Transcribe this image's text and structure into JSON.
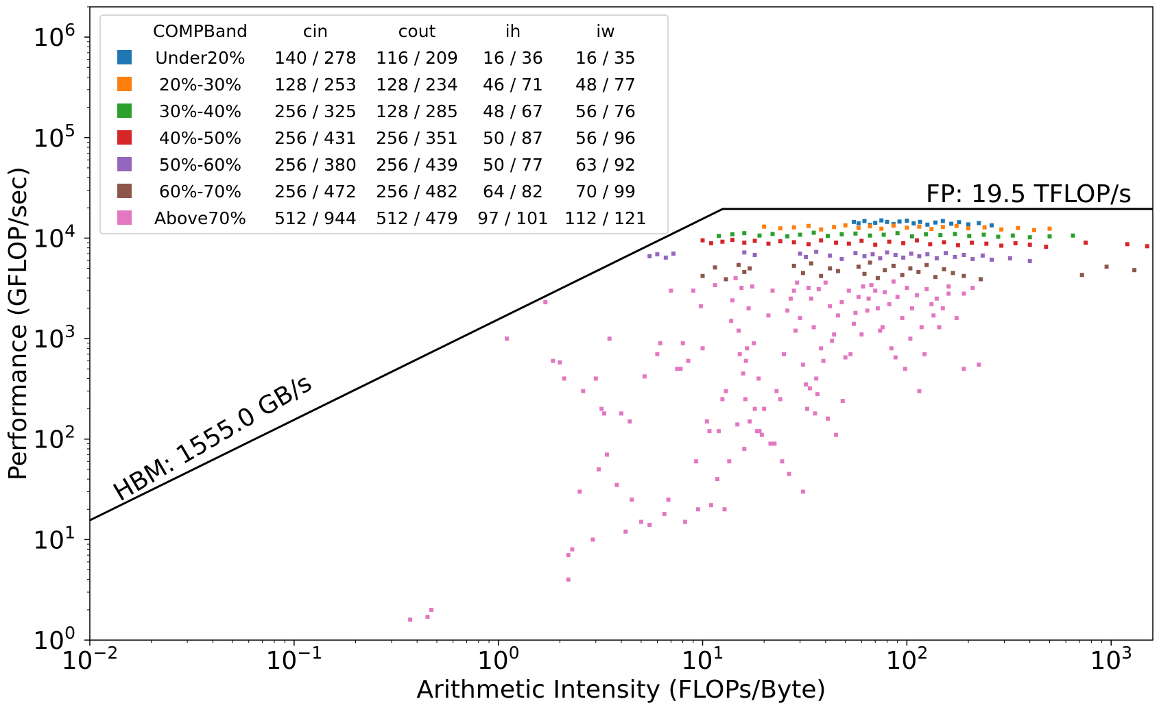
{
  "chart_data": {
    "type": "scatter",
    "title": "",
    "xlabel": "Arithmetic Intensity (FLOPs/Byte)",
    "ylabel": "Performance (GFLOP/sec)",
    "xscale": "log",
    "yscale": "log",
    "xlim": [
      0.01,
      1600
    ],
    "ylim": [
      1,
      2000000
    ],
    "grid": false,
    "x_ticks": [
      {
        "value": 0.01,
        "base": "10",
        "exp": "−2"
      },
      {
        "value": 0.1,
        "base": "10",
        "exp": "−1"
      },
      {
        "value": 1,
        "base": "10",
        "exp": "0"
      },
      {
        "value": 10,
        "base": "10",
        "exp": "1"
      },
      {
        "value": 100,
        "base": "10",
        "exp": "2"
      },
      {
        "value": 1000,
        "base": "10",
        "exp": "3"
      }
    ],
    "y_ticks": [
      {
        "value": 1,
        "base": "10",
        "exp": "0"
      },
      {
        "value": 10,
        "base": "10",
        "exp": "1"
      },
      {
        "value": 100,
        "base": "10",
        "exp": "2"
      },
      {
        "value": 1000,
        "base": "10",
        "exp": "3"
      },
      {
        "value": 10000,
        "base": "10",
        "exp": "4"
      },
      {
        "value": 100000,
        "base": "10",
        "exp": "5"
      },
      {
        "value": 1000000,
        "base": "10",
        "exp": "6"
      }
    ],
    "roofline": {
      "bandwidth_label": "HBM: 1555.0 GB/s",
      "compute_label": "FP: 19.5 TFLOP/s",
      "points": [
        [
          0.01,
          15.55
        ],
        [
          12.54,
          19500
        ],
        [
          1600,
          19500
        ]
      ]
    },
    "legend": {
      "location": "upper-left",
      "headers": [
        "COMPBand",
        "cin",
        "cout",
        "ih",
        "iw"
      ],
      "rows": [
        {
          "band": "Under20%",
          "color": "#1f77b4",
          "cin": "140 / 278",
          "cout": "116 / 209",
          "ih": "16 / 36",
          "iw": "16 / 35"
        },
        {
          "band": "20%-30%",
          "color": "#ff7f0e",
          "cin": "128 / 253",
          "cout": "128 / 234",
          "ih": "46 / 71",
          "iw": "48 / 77"
        },
        {
          "band": "30%-40%",
          "color": "#2ca02c",
          "cin": "256 / 325",
          "cout": "128 / 285",
          "ih": "48 / 67",
          "iw": "56 / 76"
        },
        {
          "band": "40%-50%",
          "color": "#d62728",
          "cin": "256 / 431",
          "cout": "256 / 351",
          "ih": "50 / 87",
          "iw": "56 / 96"
        },
        {
          "band": "50%-60%",
          "color": "#9467bd",
          "cin": "256 / 380",
          "cout": "256 / 439",
          "ih": "50 / 77",
          "iw": "63 / 92"
        },
        {
          "band": "60%-70%",
          "color": "#8c564b",
          "cin": "256 / 472",
          "cout": "256 / 482",
          "ih": "64 / 82",
          "iw": "70 / 99"
        },
        {
          "band": "Above70%",
          "color": "#e377c2",
          "cin": "512 / 944",
          "cout": "512 / 479",
          "ih": "97 / 101",
          "iw": "112 / 121"
        }
      ]
    },
    "series": [
      {
        "band_index": 0,
        "color": "#1f77b4",
        "x_range": [
          55,
          280
        ],
        "y_range": [
          13000,
          15000
        ],
        "x": [
          55,
          58,
          62,
          66,
          70,
          75,
          80,
          86,
          92,
          100,
          108,
          116,
          126,
          138,
          150,
          165,
          180,
          200,
          225,
          260
        ],
        "y": [
          14500,
          14000,
          14800,
          13500,
          14200,
          15000,
          14500,
          13800,
          14600,
          14900,
          14000,
          14500,
          13600,
          14300,
          14800,
          13900,
          14400,
          13700,
          14100,
          13400
        ]
      },
      {
        "band_index": 1,
        "color": "#ff7f0e",
        "x_range": [
          20,
          520
        ],
        "y_range": [
          11500,
          13500
        ],
        "x": [
          20,
          24,
          28,
          33,
          38,
          44,
          50,
          58,
          66,
          75,
          86,
          100,
          115,
          132,
          150,
          175,
          200,
          240,
          290,
          350,
          420,
          500
        ],
        "y": [
          13000,
          12500,
          12800,
          13200,
          12200,
          12900,
          13400,
          12600,
          13100,
          12400,
          13300,
          12700,
          13000,
          12300,
          12900,
          13200,
          12500,
          12800,
          12200,
          12600,
          12000,
          12400
        ]
      },
      {
        "band_index": 2,
        "color": "#2ca02c",
        "x_range": [
          12,
          700
        ],
        "y_range": [
          10000,
          11500
        ],
        "x": [
          12,
          14,
          16,
          19,
          22,
          26,
          30,
          35,
          41,
          48,
          56,
          66,
          77,
          90,
          106,
          124,
          146,
          172,
          202,
          238,
          280,
          330,
          400,
          500,
          650
        ],
        "y": [
          10500,
          10900,
          11200,
          10600,
          11000,
          10400,
          10800,
          11300,
          10500,
          10900,
          11100,
          10600,
          10800,
          11200,
          10400,
          10900,
          10700,
          11000,
          10500,
          10800,
          10300,
          10600,
          10200,
          10400,
          10600
        ]
      },
      {
        "band_index": 3,
        "color": "#d62728",
        "x_range": [
          10,
          1500
        ],
        "y_range": [
          6200,
          10000
        ],
        "x": [
          10,
          11,
          12.5,
          14,
          16,
          18,
          21,
          24,
          28,
          33,
          38,
          45,
          52,
          60,
          70,
          82,
          96,
          112,
          130,
          152,
          178,
          208,
          245,
          290,
          340,
          400,
          480,
          750,
          1200,
          1500
        ],
        "y": [
          9500,
          8900,
          9200,
          9600,
          9000,
          9400,
          8800,
          9300,
          9100,
          8700,
          9500,
          9000,
          8800,
          9400,
          8600,
          9200,
          8900,
          9500,
          8700,
          9100,
          8500,
          9000,
          8800,
          8400,
          8900,
          8600,
          8200,
          9000,
          8700,
          8300
        ]
      },
      {
        "band_index": 4,
        "color": "#9467bd",
        "x_range": [
          5.5,
          420
        ],
        "y_range": [
          5200,
          7800
        ],
        "x": [
          5.5,
          6,
          6.6,
          7.2,
          16,
          18,
          30,
          32,
          36,
          42,
          48,
          56,
          62,
          68,
          74,
          80,
          88,
          96,
          105,
          115,
          126,
          140,
          155,
          172,
          190,
          210,
          235,
          260,
          320,
          400
        ],
        "y": [
          6600,
          6900,
          6400,
          7000,
          7200,
          6800,
          7000,
          6500,
          7300,
          6700,
          6200,
          7100,
          6600,
          6900,
          6300,
          7200,
          6800,
          6400,
          7000,
          6600,
          6900,
          6300,
          7100,
          6500,
          6800,
          6200,
          6700,
          6100,
          6300,
          5900
        ]
      },
      {
        "band_index": 5,
        "color": "#8c564b",
        "x_range": [
          10,
          1400
        ],
        "y_range": [
          3500,
          6000
        ],
        "x": [
          10,
          11.5,
          13,
          15,
          16,
          17,
          28,
          31,
          34,
          38,
          42,
          46,
          58,
          62,
          66,
          72,
          78,
          86,
          95,
          104,
          114,
          125,
          138,
          152,
          168,
          190,
          230,
          720,
          950,
          1300
        ],
        "y": [
          4200,
          5100,
          3900,
          5400,
          4600,
          5000,
          5300,
          4500,
          5600,
          4200,
          5000,
          4700,
          5200,
          4400,
          5700,
          4000,
          4800,
          5300,
          4300,
          5000,
          4600,
          5400,
          4100,
          4900,
          4500,
          4200,
          3900,
          4300,
          5200,
          4800
        ]
      },
      {
        "band_index": 6,
        "color": "#e377c2",
        "x_range": [
          0.37,
          230
        ],
        "y_range": [
          1.6,
          4000
        ],
        "x": [
          0.37,
          0.45,
          0.47,
          1.1,
          1.7,
          1.85,
          2.0,
          2.1,
          2.2,
          2.3,
          2.5,
          2.6,
          2.9,
          3.0,
          3.2,
          3.4,
          3.5,
          3.8,
          4.2,
          4.5,
          5.0,
          5.5,
          6.0,
          6.5,
          7.0,
          7.5,
          8.0,
          8.5,
          9.0,
          9.5,
          10.0,
          10.5,
          11.0,
          11.5,
          12.0,
          12.5,
          13.0,
          13.5,
          14.0,
          14.5,
          15.0,
          15.5,
          15.8,
          16.0,
          16.2,
          16.5,
          17.0,
          17.5,
          18.0,
          18.5,
          19.0,
          20.0,
          21.0,
          22.0,
          23.0,
          24.0,
          25.0,
          26.0,
          27.0,
          28.0,
          29.0,
          30.0,
          31.0,
          32.0,
          33.0,
          34.0,
          35.0,
          36.0,
          37.0,
          38.0,
          40.0,
          42.0,
          44.0,
          46.0,
          48.0,
          50.0,
          52.0,
          55.0,
          58.0,
          61.0,
          64.0,
          67.0,
          70.0,
          74.0,
          78.0,
          82.0,
          86.0,
          90.0,
          95.0,
          100.0,
          106.0,
          112.0,
          118.0,
          125.0,
          132.0,
          140.0,
          150.0,
          160.0,
          175.0,
          190.0,
          210.0,
          225.0,
          2.2,
          3.3,
          4.0,
          5.2,
          6.8,
          8.2,
          9.3,
          10.8,
          12.8,
          14.8,
          16.3,
          17.8,
          19.5,
          22.5,
          26.5,
          31.0,
          33.5,
          36.5,
          41.0,
          45.0,
          53.0,
          60.0,
          72.0,
          84.0,
          98.0,
          115.0,
          135.0,
          160.0,
          190.0,
          3.1,
          4.4,
          6.2,
          7.8,
          9.8,
          11.8,
          13.8,
          15.2,
          16.8,
          18.8,
          21.5,
          24.5,
          28.5,
          32.5,
          35.5,
          39.0,
          43.0,
          48.5,
          56.0,
          65.0,
          76.0,
          88.0,
          104.0,
          122.0,
          144.0
        ],
        "y": [
          1.6,
          1.7,
          2.0,
          1000,
          2300,
          600,
          580,
          400,
          7,
          8,
          30,
          300,
          10,
          400,
          200,
          70,
          1000,
          35,
          12,
          25,
          15,
          14,
          700,
          18,
          3000,
          500,
          900,
          600,
          3000,
          20,
          800,
          150,
          22,
          3400,
          120,
          250,
          300,
          60,
          2400,
          4000,
          1200,
          3200,
          450,
          80,
          250,
          800,
          150,
          3300,
          200,
          120,
          120,
          200,
          1700,
          3000,
          300,
          250,
          700,
          1900,
          2500,
          3000,
          3600,
          1600,
          550,
          350,
          3200,
          2500,
          1300,
          400,
          3100,
          800,
          3600,
          2100,
          1100,
          1700,
          2300,
          650,
          3000,
          1400,
          2600,
          3300,
          1900,
          3400,
          3000,
          1200,
          2900,
          2200,
          3700,
          2600,
          1600,
          3200,
          2000,
          2700,
          1300,
          3100,
          2200,
          2500,
          2000,
          3300,
          1600,
          2800,
          3200,
          550,
          4,
          180,
          180,
          420,
          25,
          15,
          60,
          120,
          20,
          140,
          600,
          900,
          110,
          90,
          45,
          30,
          320,
          280,
          160,
          110,
          700,
          1100,
          2000,
          800,
          500,
          300,
          1700,
          2800,
          500,
          50,
          150,
          900,
          500,
          2100,
          40,
          1500,
          700,
          2000,
          400,
          90,
          60,
          1200,
          200,
          180,
          600,
          950,
          240,
          1800,
          2500,
          1300,
          650,
          1000,
          700,
          1300
        ]
      }
    ]
  }
}
